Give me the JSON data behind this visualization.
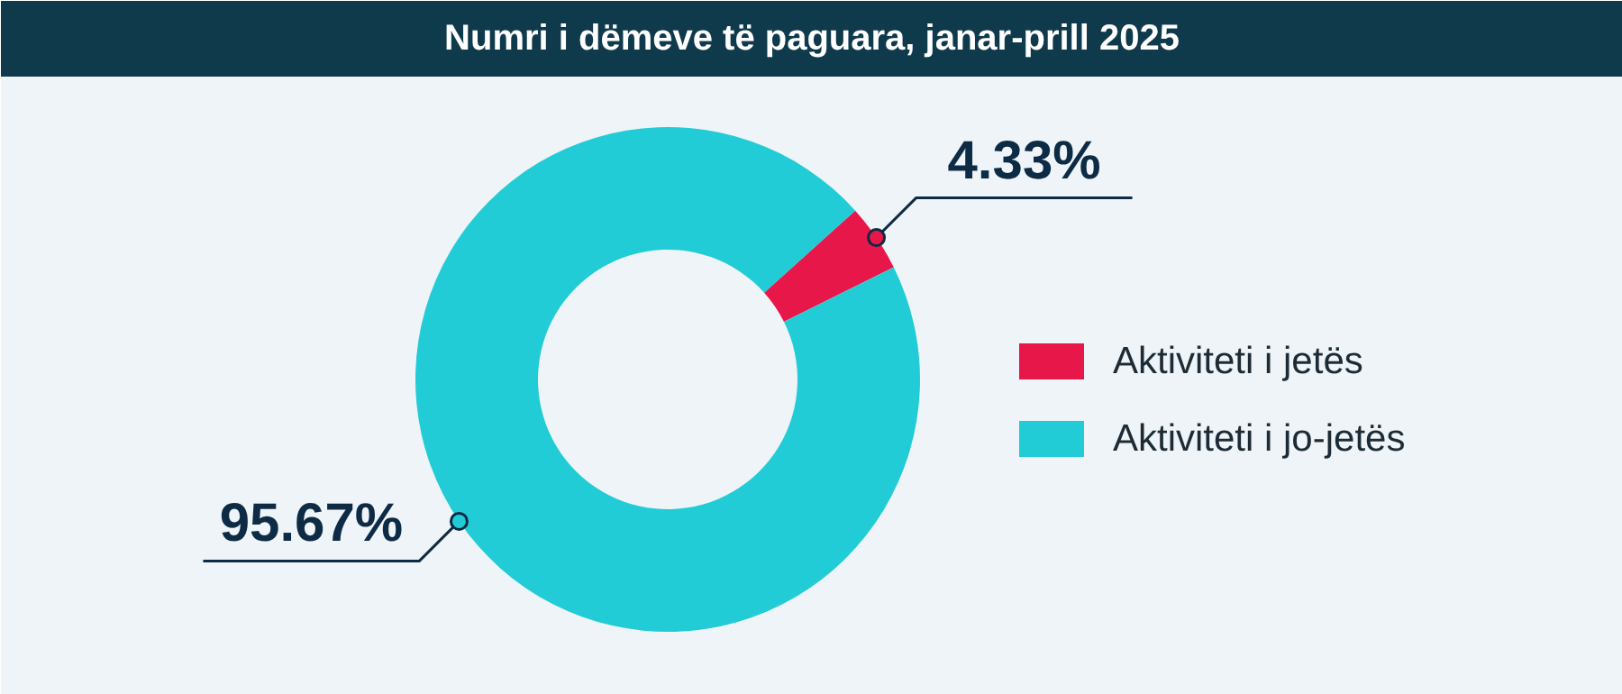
{
  "chart_data": {
    "type": "donut",
    "title": "Numri i dëmeve të paguara, janar-prill 2025",
    "categories": [
      "Aktiviteti i jetës",
      "Aktiviteti i jo-jetës"
    ],
    "values": [
      4.33,
      95.67
    ],
    "colors": [
      "#e8174a",
      "#22ccd6"
    ],
    "value_labels": [
      "4.33%",
      "95.67%"
    ],
    "legend": "right"
  }
}
